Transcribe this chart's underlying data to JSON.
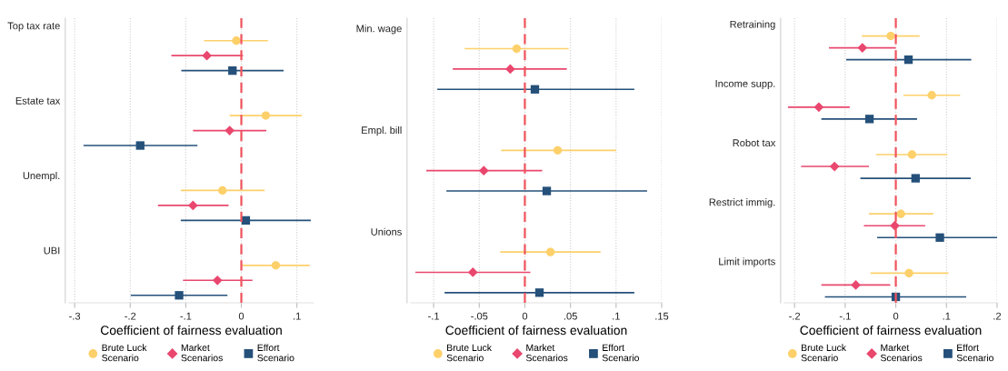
{
  "chart_data": [
    {
      "type": "scatter",
      "orientation": "horizontal",
      "categories": [
        "Top tax rate",
        "Estate tax",
        "Unempl.",
        "UBI"
      ],
      "xlabel": "Coefficient of fairness evaluation",
      "xlim": [
        -0.31,
        0.13
      ],
      "xticks": [
        {
          "value": -0.3,
          "label": "-.3"
        },
        {
          "value": -0.2,
          "label": "-.2"
        },
        {
          "value": -0.1,
          "label": "-.1"
        },
        0,
        {
          "value": 0.1,
          "label": ".1"
        }
      ],
      "grid": "x",
      "legend": "bottom",
      "ref_lines": [
        {
          "axis": "x",
          "value": 0,
          "color": "#f0545c",
          "line_style": "dashed"
        }
      ],
      "series": [
        {
          "name": "Brute Luck\nScenario",
          "color": "#fdd06a",
          "marker": "circle",
          "values": [
            -0.009,
            0.044,
            -0.034,
            0.062
          ],
          "errors": [
            [
              -0.067,
              0.048
            ],
            [
              -0.021,
              0.109
            ],
            [
              -0.109,
              0.042
            ],
            [
              0.001,
              0.123
            ]
          ]
        },
        {
          "name": "Market\nScenarios",
          "color": "#e9476e",
          "marker": "diamond",
          "values": [
            -0.062,
            -0.021,
            -0.087,
            -0.043
          ],
          "errors": [
            [
              -0.126,
              0.003
            ],
            [
              -0.087,
              0.045
            ],
            [
              -0.15,
              -0.023
            ],
            [
              -0.105,
              0.02
            ]
          ]
        },
        {
          "name": "Effort\nScenario",
          "color": "#24507a",
          "marker": "square",
          "values": [
            -0.016,
            -0.182,
            0.008,
            -0.112
          ],
          "errors": [
            [
              -0.108,
              0.076
            ],
            [
              -0.284,
              -0.079
            ],
            [
              -0.109,
              0.125
            ],
            [
              -0.199,
              -0.025
            ]
          ]
        }
      ]
    },
    {
      "type": "scatter",
      "orientation": "horizontal",
      "categories": [
        "Min. wage",
        "Empl. bill",
        "Unions"
      ],
      "xlabel": "Coefficient of fairness evaluation",
      "xlim": [
        -0.125,
        0.15
      ],
      "xticks": [
        {
          "value": -0.1,
          "label": "-.1"
        },
        {
          "value": -0.05,
          "label": "-.05"
        },
        0,
        {
          "value": 0.05,
          "label": ".05"
        },
        {
          "value": 0.1,
          "label": ".1"
        },
        {
          "value": 0.15,
          "label": ".15"
        }
      ],
      "grid": "x",
      "legend": "bottom",
      "ref_lines": [
        {
          "axis": "x",
          "value": 0,
          "color": "#f0545c",
          "line_style": "dashed"
        }
      ],
      "series": [
        {
          "name": "Brute Luck\nScenario",
          "color": "#fdd06a",
          "marker": "circle",
          "values": [
            -0.009,
            0.036,
            0.028
          ],
          "errors": [
            [
              -0.066,
              0.048
            ],
            [
              -0.026,
              0.1
            ],
            [
              -0.027,
              0.083
            ]
          ]
        },
        {
          "name": "Market\nScenarios",
          "color": "#e9476e",
          "marker": "diamond",
          "values": [
            -0.016,
            -0.045,
            -0.057
          ],
          "errors": [
            [
              -0.079,
              0.046
            ],
            [
              -0.108,
              0.019
            ],
            [
              -0.12,
              0.006
            ]
          ]
        },
        {
          "name": "Effort\nScenario",
          "color": "#24507a",
          "marker": "square",
          "values": [
            0.011,
            0.024,
            0.016
          ],
          "errors": [
            [
              -0.096,
              0.12
            ],
            [
              -0.086,
              0.134
            ],
            [
              -0.088,
              0.12
            ]
          ]
        }
      ]
    },
    {
      "type": "scatter",
      "orientation": "horizontal",
      "categories": [
        "Retraining",
        "Income supp.",
        "Robot tax",
        "Restrict immig.",
        "Limit imports"
      ],
      "xlabel": "Coefficient of fairness evaluation",
      "xlim": [
        -0.22,
        0.2
      ],
      "xticks": [
        {
          "value": -0.2,
          "label": "-.2"
        },
        {
          "value": -0.1,
          "label": "-.1"
        },
        0,
        {
          "value": 0.1,
          "label": ".1"
        },
        {
          "value": 0.2,
          "label": ".2"
        }
      ],
      "grid": "x",
      "legend": "bottom",
      "ref_lines": [
        {
          "axis": "x",
          "value": 0,
          "color": "#f0545c",
          "line_style": "dashed"
        }
      ],
      "series": [
        {
          "name": "Brute Luck\nScenario",
          "color": "#fdd06a",
          "marker": "circle",
          "values": [
            -0.01,
            0.071,
            0.032,
            0.01,
            0.026
          ],
          "errors": [
            [
              -0.067,
              0.047
            ],
            [
              0.015,
              0.127
            ],
            [
              -0.039,
              0.102
            ],
            [
              -0.053,
              0.074
            ],
            [
              -0.05,
              0.104
            ]
          ]
        },
        {
          "name": "Market\nScenarios",
          "color": "#e9476e",
          "marker": "diamond",
          "values": [
            -0.066,
            -0.152,
            -0.121,
            -0.002,
            -0.079
          ],
          "errors": [
            [
              -0.132,
              0.0
            ],
            [
              -0.213,
              -0.091
            ],
            [
              -0.187,
              -0.053
            ],
            [
              -0.063,
              0.058
            ],
            [
              -0.147,
              -0.011
            ]
          ]
        },
        {
          "name": "Effort\nScenario",
          "color": "#24507a",
          "marker": "square",
          "values": [
            0.025,
            -0.052,
            0.039,
            0.087,
            0.0
          ],
          "errors": [
            [
              -0.098,
              0.149
            ],
            [
              -0.147,
              0.042
            ],
            [
              -0.07,
              0.148
            ],
            [
              -0.037,
              0.2
            ],
            [
              -0.14,
              0.139
            ]
          ]
        }
      ]
    }
  ]
}
